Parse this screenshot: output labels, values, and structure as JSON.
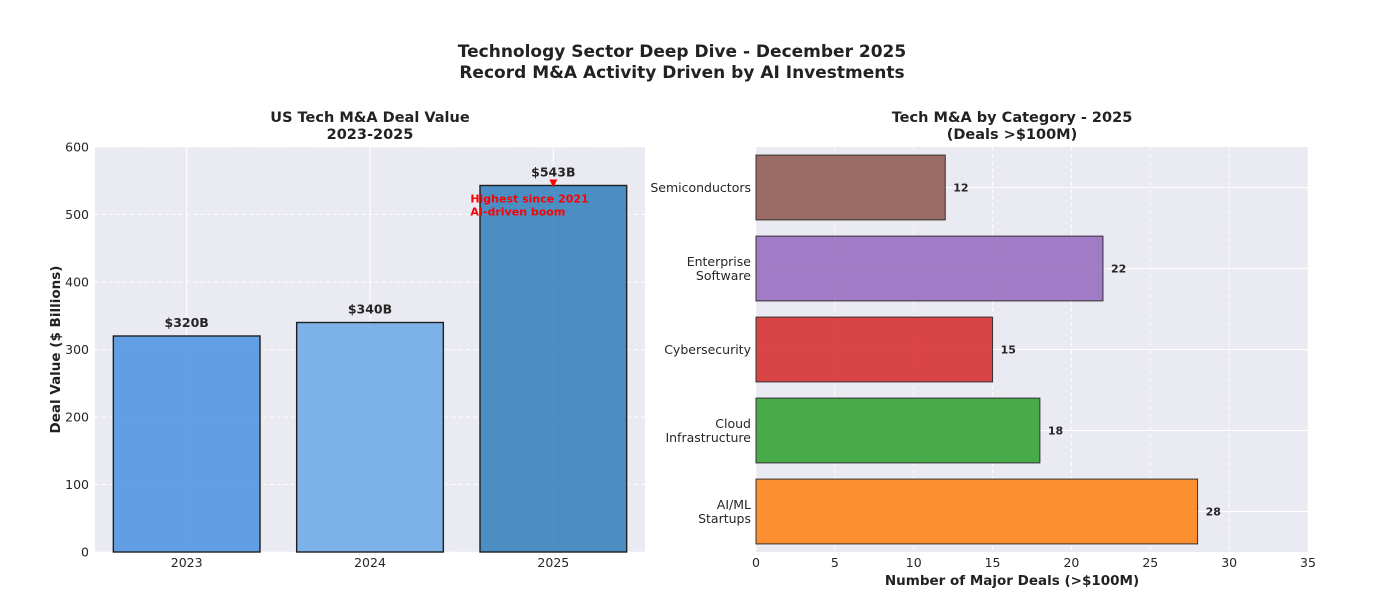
{
  "figure": {
    "title_line1": "Technology Sector Deep Dive - December 2025",
    "title_line2": "Record M&A Activity Driven by AI Investments"
  },
  "chart_data": [
    {
      "type": "bar",
      "title_line1": "US Tech M&A Deal Value",
      "title_line2": "2023-2025",
      "categories": [
        "2023",
        "2024",
        "2025"
      ],
      "values": [
        320,
        340,
        543
      ],
      "value_labels": [
        "$320B",
        "$340B",
        "$543B"
      ],
      "colors": [
        "#4a90e2",
        "#6aa8e8",
        "#2e7ebc"
      ],
      "xlabel": "",
      "ylabel": "Deal Value ($ Billions)",
      "ylim": [
        0,
        600
      ],
      "yticks": [
        0,
        100,
        200,
        300,
        400,
        500,
        600
      ],
      "grid": true,
      "annotation": {
        "line1": "Highest since 2021",
        "line2": "AI-driven boom",
        "target_category": "2025",
        "target_value": 543,
        "color": "#ff0000"
      }
    },
    {
      "type": "bar",
      "orientation": "horizontal",
      "title_line1": "Tech M&A by Category - 2025",
      "title_line2": "(Deals >$100M)",
      "categories": [
        [
          "AI/ML",
          "Startups"
        ],
        [
          "Cloud",
          "Infrastructure"
        ],
        [
          "Cybersecurity"
        ],
        [
          "Enterprise",
          "Software"
        ],
        [
          "Semiconductors"
        ]
      ],
      "values": [
        28,
        18,
        15,
        22,
        12
      ],
      "value_labels": [
        "28",
        "18",
        "15",
        "22",
        "12"
      ],
      "colors": [
        "#ff7f0e",
        "#2ca02c",
        "#d62728",
        "#9467bd",
        "#8c564b"
      ],
      "xlabel": "Number of Major Deals (>$100M)",
      "ylabel": "",
      "xlim": [
        0,
        35
      ],
      "xticks": [
        0,
        5,
        10,
        15,
        20,
        25,
        30,
        35
      ],
      "grid": true
    }
  ]
}
